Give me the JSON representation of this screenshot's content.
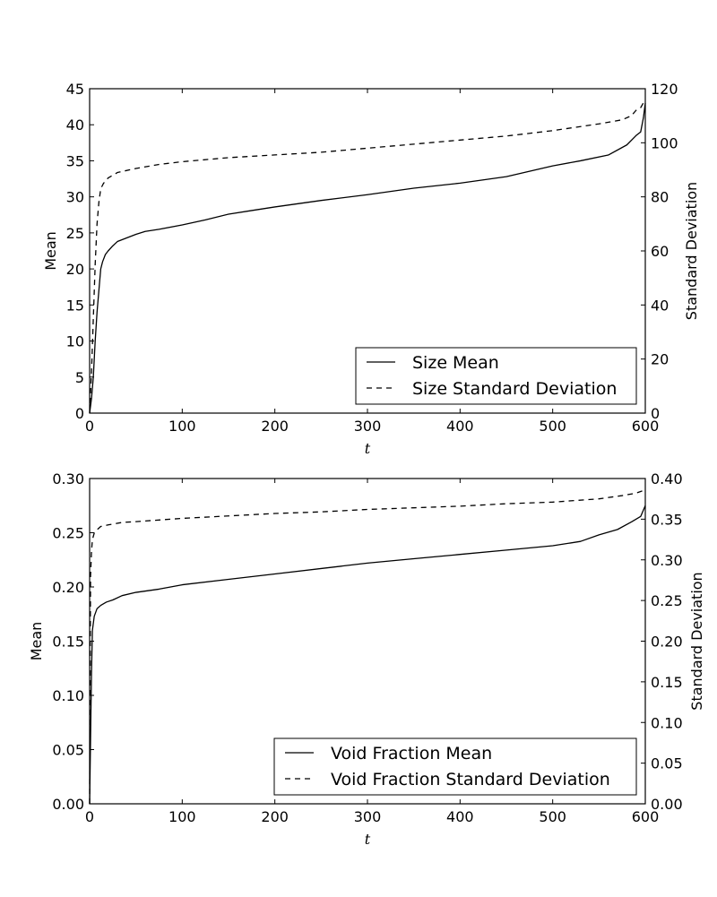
{
  "chart_data": [
    {
      "type": "line",
      "title": "",
      "xlabel": "t",
      "ylabel_left": "Mean",
      "ylabel_right": "Standard Deviation",
      "xlim": [
        0,
        600
      ],
      "ylim_left": [
        0,
        45
      ],
      "ylim_right": [
        0,
        120
      ],
      "x_ticks": [
        0,
        100,
        200,
        300,
        400,
        500,
        600
      ],
      "y_ticks_left": [
        0,
        5,
        10,
        15,
        20,
        25,
        30,
        35,
        40,
        45
      ],
      "y_ticks_right": [
        0,
        20,
        40,
        60,
        80,
        100,
        120
      ],
      "grid": false,
      "legend_position": "lower-right",
      "series": [
        {
          "name": "Size Mean",
          "axis": "left",
          "style": "solid",
          "x": [
            0,
            2,
            4,
            6,
            8,
            10,
            12,
            14,
            17,
            20,
            25,
            30,
            40,
            50,
            60,
            75,
            100,
            125,
            150,
            175,
            200,
            250,
            300,
            350,
            400,
            450,
            500,
            530,
            560,
            580,
            590,
            595,
            598,
            600
          ],
          "y": [
            0,
            2,
            5,
            10,
            14,
            17,
            20,
            21,
            22,
            22.5,
            23.2,
            23.8,
            24.3,
            24.8,
            25.2,
            25.5,
            26.1,
            26.8,
            27.6,
            28.1,
            28.6,
            29.5,
            30.3,
            31.2,
            31.9,
            32.8,
            34.3,
            35.0,
            35.8,
            37.2,
            38.5,
            39.0,
            41.0,
            43.0
          ]
        },
        {
          "name": "Size Standard Deviation",
          "axis": "right",
          "style": "dashed",
          "x": [
            0,
            2,
            4,
            6,
            8,
            10,
            12,
            15,
            20,
            30,
            50,
            75,
            100,
            150,
            200,
            250,
            300,
            350,
            400,
            450,
            500,
            550,
            575,
            585,
            590,
            595,
            600
          ],
          "y": [
            0,
            15,
            35,
            55,
            70,
            78,
            83,
            85,
            87,
            89,
            90.5,
            92,
            93,
            94.5,
            95.5,
            96.5,
            98,
            99.5,
            101,
            102.5,
            104.5,
            107,
            108.5,
            110,
            112,
            113,
            116
          ]
        }
      ]
    },
    {
      "type": "line",
      "title": "",
      "xlabel": "t",
      "ylabel_left": "Mean",
      "ylabel_right": "Standard Deviation",
      "xlim": [
        0,
        600
      ],
      "ylim_left": [
        0,
        0.3
      ],
      "ylim_right": [
        0,
        0.4
      ],
      "x_ticks": [
        0,
        100,
        200,
        300,
        400,
        500,
        600
      ],
      "y_ticks_left": [
        0.0,
        0.05,
        0.1,
        0.15,
        0.2,
        0.25,
        0.3
      ],
      "y_ticks_right": [
        0.0,
        0.05,
        0.1,
        0.15,
        0.2,
        0.25,
        0.3,
        0.35,
        0.4
      ],
      "grid": false,
      "legend_position": "lower-right",
      "series": [
        {
          "name": "Void Fraction Mean",
          "axis": "left",
          "style": "solid",
          "x": [
            0,
            1,
            2,
            3,
            5,
            8,
            12,
            18,
            25,
            35,
            50,
            75,
            100,
            150,
            200,
            250,
            300,
            350,
            400,
            450,
            500,
            530,
            550,
            570,
            585,
            595,
            600
          ],
          "y": [
            0,
            0.06,
            0.12,
            0.16,
            0.173,
            0.18,
            0.183,
            0.186,
            0.188,
            0.192,
            0.195,
            0.198,
            0.202,
            0.207,
            0.212,
            0.217,
            0.222,
            0.226,
            0.23,
            0.234,
            0.238,
            0.242,
            0.248,
            0.253,
            0.26,
            0.265,
            0.275
          ]
        },
        {
          "name": "Void Fraction Standard Deviation",
          "axis": "right",
          "style": "dashed",
          "x": [
            0,
            1,
            2,
            3,
            5,
            8,
            12,
            20,
            35,
            50,
            100,
            150,
            200,
            250,
            300,
            350,
            400,
            450,
            500,
            550,
            575,
            590,
            600
          ],
          "y": [
            0,
            0.28,
            0.31,
            0.325,
            0.333,
            0.337,
            0.341,
            0.343,
            0.346,
            0.347,
            0.351,
            0.354,
            0.357,
            0.359,
            0.362,
            0.364,
            0.366,
            0.369,
            0.371,
            0.375,
            0.379,
            0.382,
            0.386
          ]
        }
      ]
    }
  ]
}
